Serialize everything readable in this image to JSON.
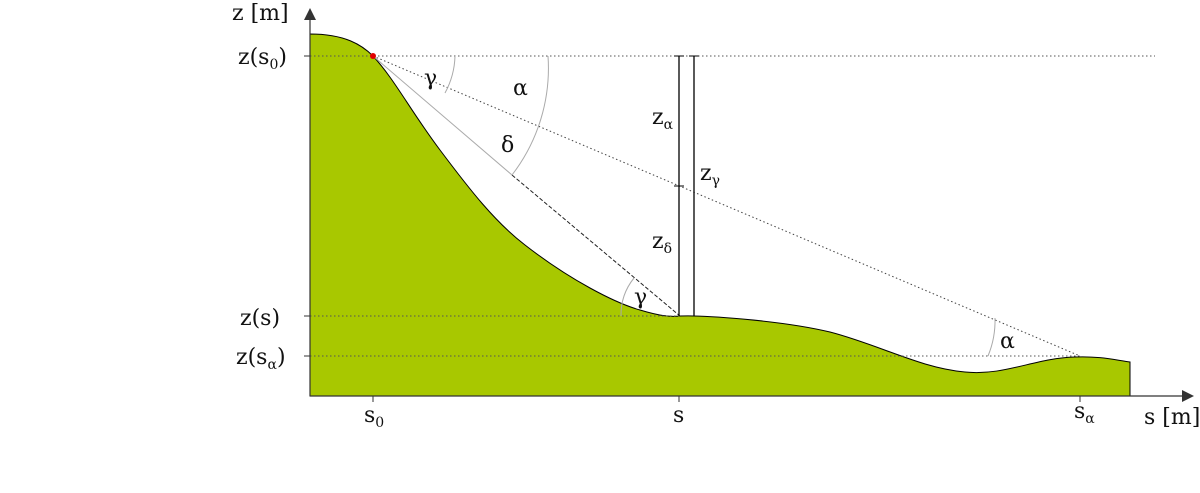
{
  "axes": {
    "y_label": "z [m]",
    "x_label": "s [m]"
  },
  "y_ticks": {
    "z_s0": {
      "main": "z(s",
      "sub": "0",
      "tail": ")"
    },
    "z_s": "z(s)",
    "z_salpha": {
      "main": "z(s",
      "sub": "α",
      "tail": ")"
    }
  },
  "x_ticks": {
    "s0": {
      "main": "s",
      "sub": "0"
    },
    "s": "s",
    "salpha": {
      "main": "s",
      "sub": "α"
    }
  },
  "angles": {
    "gamma_top": "γ",
    "alpha_top": "α",
    "delta": "δ",
    "gamma_bottom": "γ",
    "alpha_bottom": "α"
  },
  "heights": {
    "z_alpha": {
      "main": "z",
      "sub": "α"
    },
    "z_delta": {
      "main": "z",
      "sub": "δ"
    },
    "z_gamma": {
      "main": "z",
      "sub": "γ"
    }
  },
  "colors": {
    "terrain": "#a8c800",
    "start_point": "#e00000",
    "axis": "#333333"
  }
}
